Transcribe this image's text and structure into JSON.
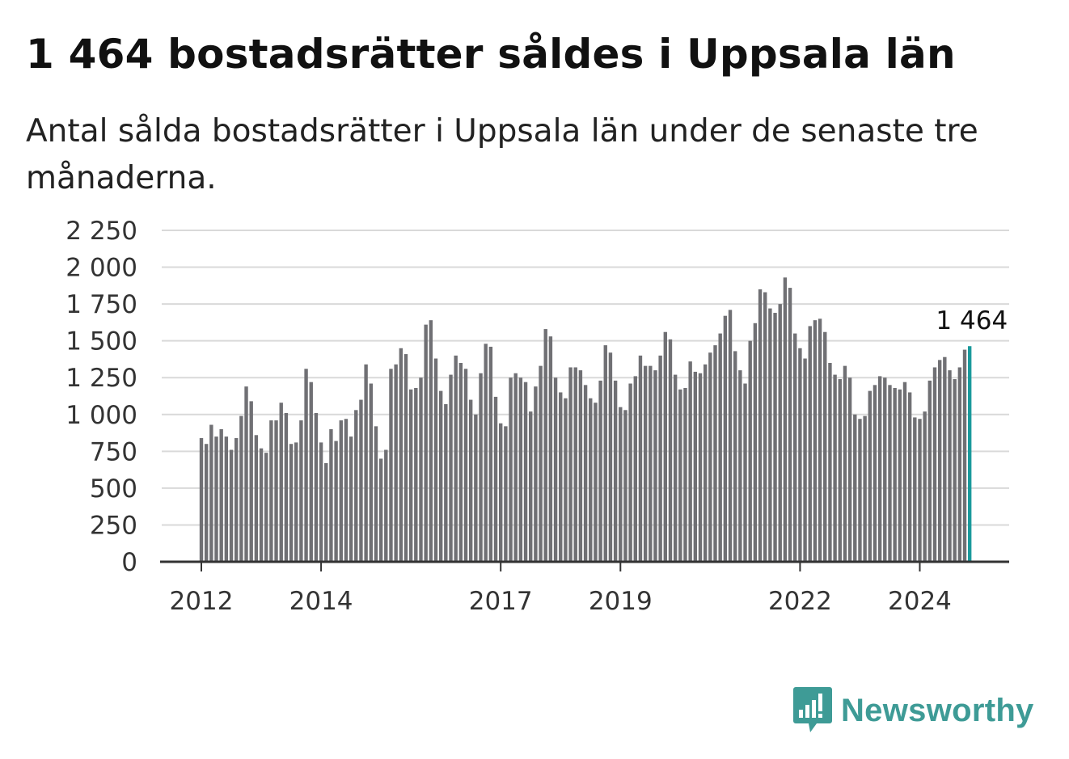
{
  "title": "1 464 bostadsrätter såldes i Uppsala län",
  "subtitle": "Antal sålda bostadsrätter i Uppsala län under de senaste tre månaderna.",
  "brand": {
    "name": "Newsworthy",
    "icon": "newsworthy-logo-icon",
    "color": "#3e9b96"
  },
  "chart_data": {
    "type": "bar",
    "title": "",
    "xlabel": "",
    "ylabel": "",
    "start": "2012-01",
    "frequency": "monthly",
    "ylim": [
      0,
      2250
    ],
    "yticks": [
      0,
      250,
      500,
      750,
      1000,
      1250,
      1500,
      1750,
      2000,
      2250
    ],
    "ytick_labels": [
      "0",
      "250",
      "500",
      "750",
      "1 000",
      "1 250",
      "1 500",
      "1 750",
      "2 000",
      "2 250"
    ],
    "xticks": [
      {
        "label": "2012",
        "index": 0
      },
      {
        "label": "2014",
        "index": 24
      },
      {
        "label": "2017",
        "index": 60
      },
      {
        "label": "2019",
        "index": 84
      },
      {
        "label": "2022",
        "index": 120
      },
      {
        "label": "2024",
        "index": 144
      }
    ],
    "grid": true,
    "bar_color": "#707074",
    "highlight_color": "#1a9a9c",
    "highlight_index": 154,
    "annotation": {
      "text": "1 464",
      "index": 154
    },
    "values": [
      840,
      800,
      930,
      850,
      900,
      850,
      760,
      840,
      990,
      1190,
      1090,
      860,
      770,
      740,
      960,
      960,
      1080,
      1010,
      800,
      810,
      960,
      1310,
      1220,
      1010,
      810,
      670,
      900,
      820,
      960,
      970,
      850,
      1030,
      1100,
      1340,
      1210,
      920,
      700,
      760,
      1310,
      1340,
      1450,
      1410,
      1170,
      1180,
      1250,
      1610,
      1640,
      1380,
      1160,
      1070,
      1270,
      1400,
      1350,
      1310,
      1100,
      1000,
      1280,
      1480,
      1460,
      1120,
      940,
      920,
      1250,
      1280,
      1250,
      1220,
      1020,
      1190,
      1330,
      1580,
      1530,
      1250,
      1150,
      1110,
      1320,
      1320,
      1300,
      1200,
      1110,
      1080,
      1230,
      1470,
      1420,
      1230,
      1050,
      1030,
      1210,
      1260,
      1400,
      1330,
      1330,
      1300,
      1400,
      1560,
      1510,
      1270,
      1170,
      1180,
      1360,
      1290,
      1280,
      1340,
      1420,
      1470,
      1550,
      1670,
      1710,
      1430,
      1300,
      1210,
      1500,
      1620,
      1850,
      1830,
      1720,
      1690,
      1750,
      1930,
      1860,
      1550,
      1450,
      1380,
      1600,
      1640,
      1650,
      1560,
      1350,
      1270,
      1240,
      1330,
      1250,
      1000,
      970,
      990,
      1160,
      1200,
      1260,
      1250,
      1200,
      1180,
      1170,
      1220,
      1150,
      980,
      970,
      1020,
      1230,
      1320,
      1370,
      1390,
      1300,
      1240,
      1320,
      1440,
      1464
    ]
  }
}
